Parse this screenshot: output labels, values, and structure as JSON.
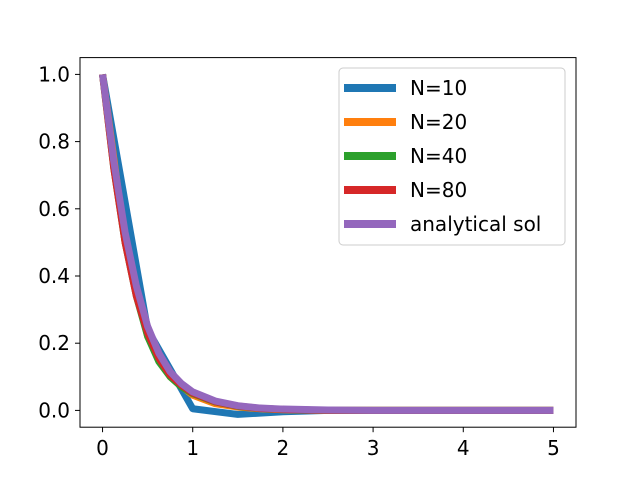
{
  "chart_data": {
    "type": "line",
    "title": "",
    "xlabel": "",
    "ylabel": "",
    "xlim": [
      -0.25,
      5.25
    ],
    "ylim": [
      -0.05,
      1.05
    ],
    "xticks": [
      0,
      1,
      2,
      3,
      4,
      5
    ],
    "xtick_labels": [
      "0",
      "1",
      "2",
      "3",
      "4",
      "5"
    ],
    "yticks": [
      0.0,
      0.2,
      0.4,
      0.6,
      0.8,
      1.0
    ],
    "ytick_labels": [
      "0.0",
      "0.2",
      "0.4",
      "0.6",
      "0.8",
      "1.0"
    ],
    "grid": false,
    "legend_position": "top-right",
    "series": [
      {
        "name": "N=10",
        "color": "#1f77b4",
        "x": [
          0,
          0.5,
          1.0,
          1.5,
          2.0,
          2.5,
          3.0,
          3.5,
          4.0,
          4.5,
          5.0
        ],
        "y": [
          1.0,
          0.24,
          0.005,
          -0.012,
          -0.004,
          0.0,
          0.0,
          0.0,
          0.0,
          0.0,
          0.0
        ]
      },
      {
        "name": "N=20",
        "color": "#ff7f0e",
        "x": [
          0,
          0.25,
          0.5,
          0.75,
          1.0,
          1.25,
          1.5,
          1.75,
          2.0,
          2.5,
          3.0,
          3.5,
          4.0,
          4.5,
          5.0
        ],
        "y": [
          1.0,
          0.5,
          0.22,
          0.1,
          0.045,
          0.02,
          0.01,
          0.005,
          0.002,
          0.0,
          0.0,
          0.0,
          0.0,
          0.0,
          0.0
        ]
      },
      {
        "name": "N=40",
        "color": "#2ca02c",
        "x": [
          0,
          0.125,
          0.25,
          0.375,
          0.5,
          0.625,
          0.75,
          0.875,
          1.0,
          1.25,
          1.5,
          1.75,
          2.0,
          2.5,
          3.0,
          3.5,
          4.0,
          4.5,
          5.0
        ],
        "y": [
          1.0,
          0.72,
          0.5,
          0.34,
          0.22,
          0.145,
          0.1,
          0.07,
          0.05,
          0.025,
          0.012,
          0.006,
          0.003,
          0.0,
          0.0,
          0.0,
          0.0,
          0.0,
          0.0
        ]
      },
      {
        "name": "N=80",
        "color": "#d62728",
        "x": [
          0,
          0.125,
          0.25,
          0.375,
          0.5,
          0.625,
          0.75,
          0.875,
          1.0,
          1.25,
          1.5,
          1.75,
          2.0,
          2.5,
          3.0,
          3.5,
          4.0,
          4.5,
          5.0
        ],
        "y": [
          1.0,
          0.72,
          0.5,
          0.34,
          0.23,
          0.155,
          0.105,
          0.075,
          0.052,
          0.026,
          0.013,
          0.006,
          0.003,
          0.0,
          0.0,
          0.0,
          0.0,
          0.0,
          0.0
        ]
      },
      {
        "name": "analytical sol",
        "color": "#9467bd",
        "x": [
          0,
          0.125,
          0.25,
          0.375,
          0.5,
          0.625,
          0.75,
          0.875,
          1.0,
          1.25,
          1.5,
          1.75,
          2.0,
          2.5,
          3.0,
          3.5,
          4.0,
          4.5,
          5.0
        ],
        "y": [
          1.0,
          0.74,
          0.53,
          0.37,
          0.25,
          0.17,
          0.115,
          0.08,
          0.055,
          0.028,
          0.014,
          0.007,
          0.004,
          0.001,
          0.0,
          0.0,
          0.0,
          0.0,
          0.0
        ]
      }
    ]
  }
}
